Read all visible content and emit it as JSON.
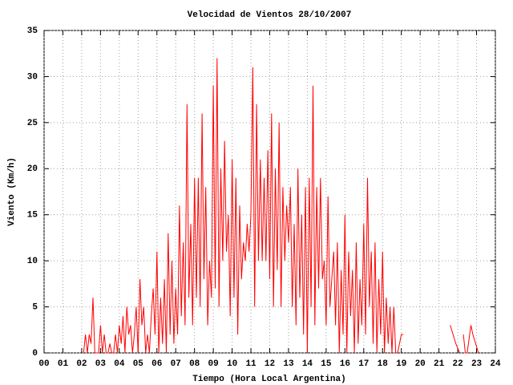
{
  "chart_data": {
    "type": "line",
    "title": "Velocidad de Vientos 28/10/2007",
    "x_label": "Tiempo (Hora Local Argentina)",
    "y_label": "Viento (Km/h)",
    "xlim": [
      0,
      24
    ],
    "xticks": [
      {
        "value": 0,
        "label": "00"
      },
      {
        "value": 1,
        "label": "01"
      },
      {
        "value": 2,
        "label": "02"
      },
      {
        "value": 3,
        "label": "03"
      },
      {
        "value": 4,
        "label": "04"
      },
      {
        "value": 5,
        "label": "05"
      },
      {
        "value": 6,
        "label": "06"
      },
      {
        "value": 7,
        "label": "07"
      },
      {
        "value": 8,
        "label": "08"
      },
      {
        "value": 9,
        "label": "09"
      },
      10,
      11,
      12,
      13,
      14,
      15,
      16,
      17,
      18,
      19,
      20,
      21,
      22,
      23,
      24
    ],
    "ylim": [
      0,
      35
    ],
    "yticks": [
      0,
      5,
      10,
      15,
      20,
      25,
      30,
      35
    ],
    "grid": true,
    "series": [
      {
        "color": "#ff0000",
        "x": [
          2.1,
          2.2,
          2.3,
          2.4,
          2.5,
          2.6,
          2.7,
          2.8,
          2.9,
          3.0,
          3.1,
          3.2,
          3.3,
          3.4,
          3.5,
          3.6,
          3.7,
          3.8,
          3.9,
          4.0,
          4.1,
          4.2,
          4.3,
          4.4,
          4.5,
          4.6,
          4.7,
          4.8,
          4.9,
          5.0,
          5.1,
          5.2,
          5.3,
          5.4,
          5.5,
          5.6,
          5.7,
          5.8,
          5.9,
          6.0,
          6.1,
          6.2,
          6.3,
          6.4,
          6.5,
          6.6,
          6.7,
          6.8,
          6.9,
          7.0,
          7.1,
          7.2,
          7.3,
          7.4,
          7.5,
          7.6,
          7.7,
          7.8,
          7.9,
          8.0,
          8.1,
          8.2,
          8.3,
          8.4,
          8.5,
          8.6,
          8.7,
          8.8,
          8.9,
          9.0,
          9.1,
          9.2,
          9.3,
          9.4,
          9.5,
          9.6,
          9.7,
          9.8,
          9.9,
          10.0,
          10.1,
          10.2,
          10.3,
          10.4,
          10.5,
          10.6,
          10.7,
          10.8,
          10.9,
          11.0,
          11.1,
          11.2,
          11.3,
          11.4,
          11.5,
          11.6,
          11.7,
          11.8,
          11.9,
          12.0,
          12.1,
          12.2,
          12.3,
          12.4,
          12.5,
          12.6,
          12.7,
          12.8,
          12.9,
          13.0,
          13.1,
          13.2,
          13.3,
          13.4,
          13.5,
          13.6,
          13.7,
          13.8,
          13.9,
          14.0,
          14.1,
          14.2,
          14.3,
          14.4,
          14.5,
          14.6,
          14.7,
          14.8,
          14.9,
          15.0,
          15.1,
          15.2,
          15.3,
          15.4,
          15.5,
          15.6,
          15.7,
          15.8,
          15.9,
          16.0,
          16.1,
          16.2,
          16.3,
          16.4,
          16.5,
          16.6,
          16.7,
          16.8,
          16.9,
          17.0,
          17.1,
          17.2,
          17.3,
          17.4,
          17.5,
          17.6,
          17.7,
          17.8,
          17.9,
          18.0,
          18.1,
          18.2,
          18.3,
          18.4,
          18.5,
          18.6,
          18.7,
          18.8,
          18.9,
          19.0,
          19.1,
          19.2,
          21.6,
          21.9,
          22.1,
          22.2,
          22.3,
          22.4,
          22.5,
          22.7,
          22.8,
          23.1
        ],
        "values": [
          0,
          2,
          0,
          2,
          1,
          6,
          0,
          0,
          0,
          3,
          0,
          2,
          0,
          0,
          1,
          0,
          0,
          2,
          0,
          3,
          1,
          4,
          0,
          5,
          2,
          3,
          0,
          2,
          5,
          0,
          8,
          3,
          5,
          0,
          2,
          0,
          4,
          7,
          2,
          11,
          0,
          6,
          1,
          8,
          0,
          13,
          2,
          10,
          1,
          7,
          2,
          16,
          4,
          12,
          3,
          27,
          6,
          14,
          3,
          19,
          6,
          19,
          5,
          26,
          8,
          18,
          3,
          10,
          6,
          29,
          7,
          32,
          5,
          20,
          10,
          23,
          11,
          15,
          4,
          21,
          6,
          19,
          2,
          16,
          8,
          12,
          10,
          14,
          11,
          15,
          31,
          5,
          27,
          10,
          21,
          10,
          19,
          10,
          22,
          8,
          26,
          5,
          20,
          9,
          25,
          5,
          18,
          10,
          16,
          12,
          18,
          5,
          14,
          3,
          20,
          6,
          15,
          2,
          18,
          0,
          19,
          5,
          29,
          3,
          18,
          7,
          19,
          8,
          10,
          3,
          17,
          5,
          8,
          11,
          3,
          12,
          0,
          9,
          2,
          15,
          0,
          11,
          4,
          9,
          0,
          12,
          1,
          8,
          3,
          14,
          2,
          19,
          5,
          11,
          1,
          12,
          0,
          8,
          2,
          11,
          0,
          6,
          1,
          5,
          0,
          5,
          0,
          0,
          1,
          2,
          2,
          null,
          3,
          1,
          0,
          null,
          2,
          0,
          0,
          3,
          2,
          0
        ]
      }
    ]
  }
}
